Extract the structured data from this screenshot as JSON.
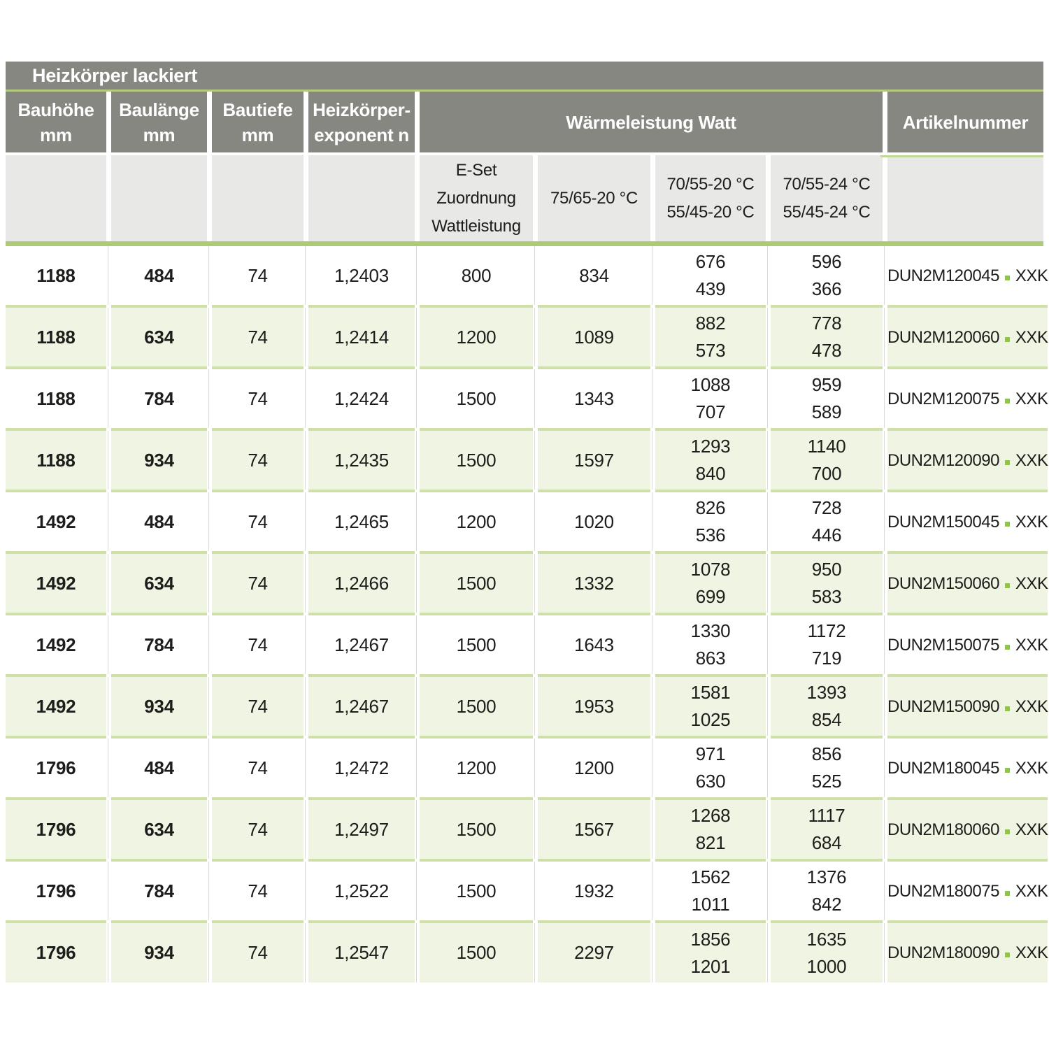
{
  "title": "Heizkörper lackiert",
  "header": {
    "col1": {
      "line1": "Bauhöhe",
      "line2": "mm"
    },
    "col2": {
      "line1": "Baulänge",
      "line2": "mm"
    },
    "col3": {
      "line1": "Bautiefe",
      "line2": "mm"
    },
    "col4": {
      "line1": "Heizkörper-",
      "line2": "exponent n"
    },
    "group": "Wärmeleistung Watt",
    "artikel": "Artikelnummer"
  },
  "subheader": {
    "eset": [
      "E-Set",
      "Zuordnung",
      "Wattleistung"
    ],
    "t7565": "75/65-20 °C",
    "t7055_20": [
      "70/55-20 °C",
      "55/45-20 °C"
    ],
    "t7055_24": [
      "70/55-24 °C",
      "55/45-24 °C"
    ]
  },
  "rows": [
    {
      "bauhoehe": "1188",
      "baulaenge": "484",
      "bautiefe": "74",
      "exponent": "1,2403",
      "eset": "800",
      "w7565": "834",
      "w70_20": [
        "676",
        "439"
      ],
      "w70_24": [
        "596",
        "366"
      ],
      "artikel_code": "DUN2M120045",
      "artikel_suffix": "XXK"
    },
    {
      "bauhoehe": "1188",
      "baulaenge": "634",
      "bautiefe": "74",
      "exponent": "1,2414",
      "eset": "1200",
      "w7565": "1089",
      "w70_20": [
        "882",
        "573"
      ],
      "w70_24": [
        "778",
        "478"
      ],
      "artikel_code": "DUN2M120060",
      "artikel_suffix": "XXK"
    },
    {
      "bauhoehe": "1188",
      "baulaenge": "784",
      "bautiefe": "74",
      "exponent": "1,2424",
      "eset": "1500",
      "w7565": "1343",
      "w70_20": [
        "1088",
        "707"
      ],
      "w70_24": [
        "959",
        "589"
      ],
      "artikel_code": "DUN2M120075",
      "artikel_suffix": "XXK"
    },
    {
      "bauhoehe": "1188",
      "baulaenge": "934",
      "bautiefe": "74",
      "exponent": "1,2435",
      "eset": "1500",
      "w7565": "1597",
      "w70_20": [
        "1293",
        "840"
      ],
      "w70_24": [
        "1140",
        "700"
      ],
      "artikel_code": "DUN2M120090",
      "artikel_suffix": "XXK"
    },
    {
      "bauhoehe": "1492",
      "baulaenge": "484",
      "bautiefe": "74",
      "exponent": "1,2465",
      "eset": "1200",
      "w7565": "1020",
      "w70_20": [
        "826",
        "536"
      ],
      "w70_24": [
        "728",
        "446"
      ],
      "artikel_code": "DUN2M150045",
      "artikel_suffix": "XXK"
    },
    {
      "bauhoehe": "1492",
      "baulaenge": "634",
      "bautiefe": "74",
      "exponent": "1,2466",
      "eset": "1500",
      "w7565": "1332",
      "w70_20": [
        "1078",
        "699"
      ],
      "w70_24": [
        "950",
        "583"
      ],
      "artikel_code": "DUN2M150060",
      "artikel_suffix": "XXK"
    },
    {
      "bauhoehe": "1492",
      "baulaenge": "784",
      "bautiefe": "74",
      "exponent": "1,2467",
      "eset": "1500",
      "w7565": "1643",
      "w70_20": [
        "1330",
        "863"
      ],
      "w70_24": [
        "1172",
        "719"
      ],
      "artikel_code": "DUN2M150075",
      "artikel_suffix": "XXK"
    },
    {
      "bauhoehe": "1492",
      "baulaenge": "934",
      "bautiefe": "74",
      "exponent": "1,2467",
      "eset": "1500",
      "w7565": "1953",
      "w70_20": [
        "1581",
        "1025"
      ],
      "w70_24": [
        "1393",
        "854"
      ],
      "artikel_code": "DUN2M150090",
      "artikel_suffix": "XXK"
    },
    {
      "bauhoehe": "1796",
      "baulaenge": "484",
      "bautiefe": "74",
      "exponent": "1,2472",
      "eset": "1200",
      "w7565": "1200",
      "w70_20": [
        "971",
        "630"
      ],
      "w70_24": [
        "856",
        "525"
      ],
      "artikel_code": "DUN2M180045",
      "artikel_suffix": "XXK"
    },
    {
      "bauhoehe": "1796",
      "baulaenge": "634",
      "bautiefe": "74",
      "exponent": "1,2497",
      "eset": "1500",
      "w7565": "1567",
      "w70_20": [
        "1268",
        "821"
      ],
      "w70_24": [
        "1117",
        "684"
      ],
      "artikel_code": "DUN2M180060",
      "artikel_suffix": "XXK"
    },
    {
      "bauhoehe": "1796",
      "baulaenge": "784",
      "bautiefe": "74",
      "exponent": "1,2522",
      "eset": "1500",
      "w7565": "1932",
      "w70_20": [
        "1562",
        "1011"
      ],
      "w70_24": [
        "1376",
        "842"
      ],
      "artikel_code": "DUN2M180075",
      "artikel_suffix": "XXK"
    },
    {
      "bauhoehe": "1796",
      "baulaenge": "934",
      "bautiefe": "74",
      "exponent": "1,2547",
      "eset": "1500",
      "w7565": "2297",
      "w70_20": [
        "1856",
        "1201"
      ],
      "w70_24": [
        "1635",
        "1000"
      ],
      "artikel_code": "DUN2M180090",
      "artikel_suffix": "XXK"
    }
  ],
  "colors": {
    "header_gray": "#858780",
    "subheader_gray": "#e8e8e6",
    "row_tint_green": "#f0f4e3",
    "title_underline_green": "#b4cb7f",
    "thick_line_green": "#adcb76",
    "row_separator_green": "#cfdfaa",
    "artikel_dot_green": "#8dc63f",
    "text": "#1d1d1b"
  }
}
